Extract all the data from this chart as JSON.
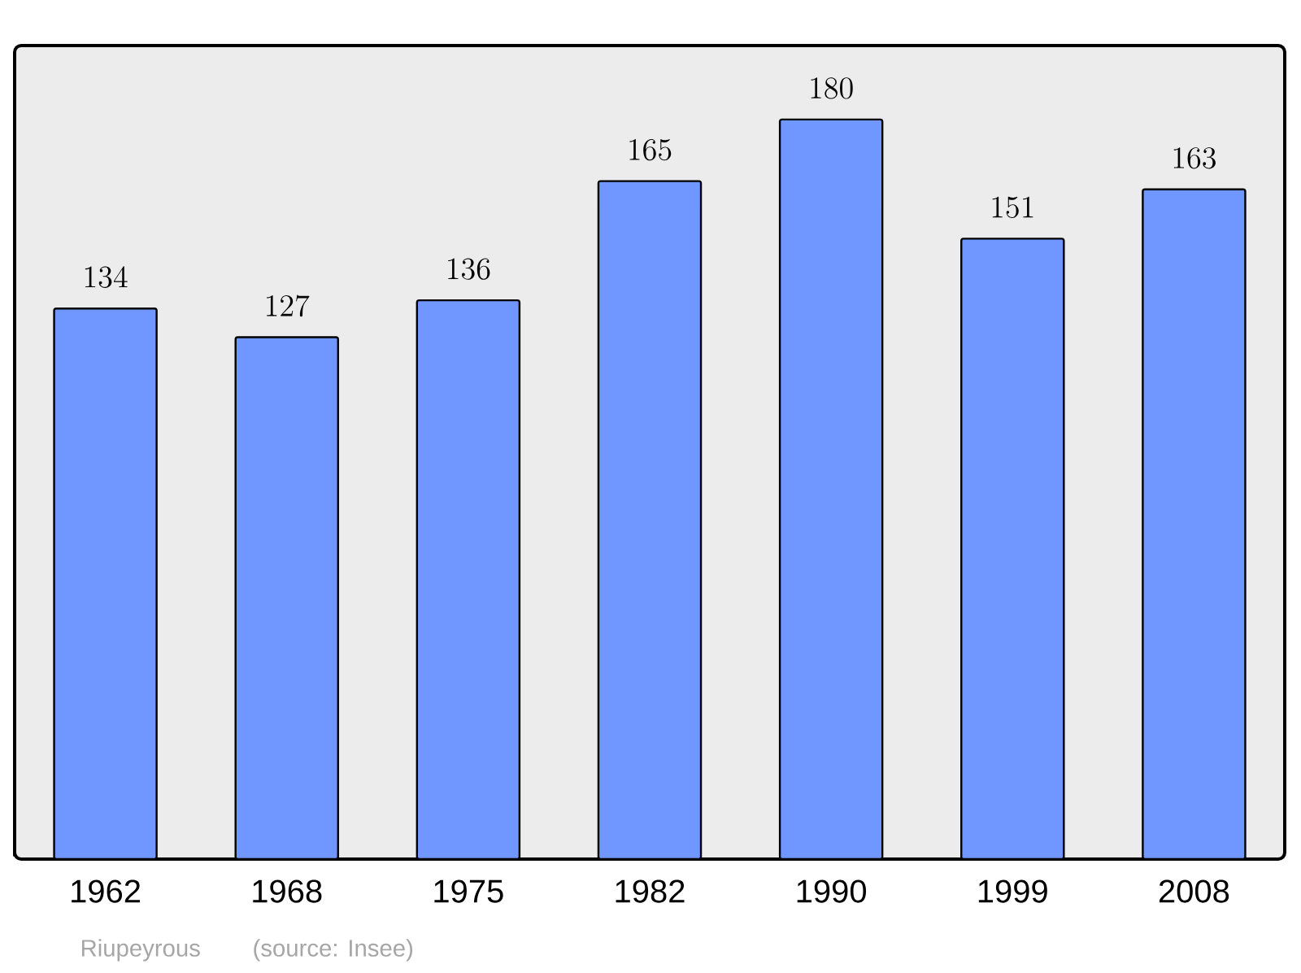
{
  "chart_data": {
    "type": "bar",
    "categories": [
      "1962",
      "1968",
      "1975",
      "1982",
      "1990",
      "1999",
      "2008"
    ],
    "values": [
      134,
      127,
      136,
      165,
      180,
      151,
      163
    ],
    "color": "#7096ff",
    "data_labels": true,
    "annotations": [
      "Riupeyrous",
      "(source: Insee)"
    ]
  }
}
